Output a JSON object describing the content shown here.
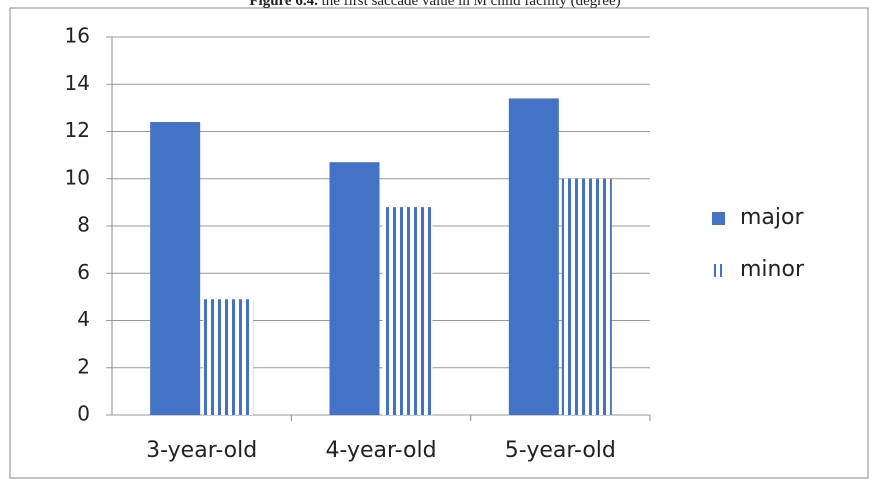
{
  "chart_data": {
    "type": "bar",
    "figure_label": "Figure 6.4.",
    "title": "the first saccade value in M child facility (degree)",
    "categories": [
      "3-year-old",
      "4-year-old",
      "5-year-old"
    ],
    "series": [
      {
        "name": "major",
        "color": "#4472c4",
        "fill": "solid",
        "values": [
          12.4,
          10.7,
          13.4
        ]
      },
      {
        "name": "minor",
        "color": "#4472c4",
        "fill": "stripes",
        "values": [
          4.9,
          8.8,
          10.0
        ]
      }
    ],
    "ylim": [
      0,
      16
    ],
    "yticks": [
      0,
      2,
      4,
      6,
      8,
      10,
      12,
      14,
      16
    ],
    "grid": true,
    "legend": "right"
  }
}
